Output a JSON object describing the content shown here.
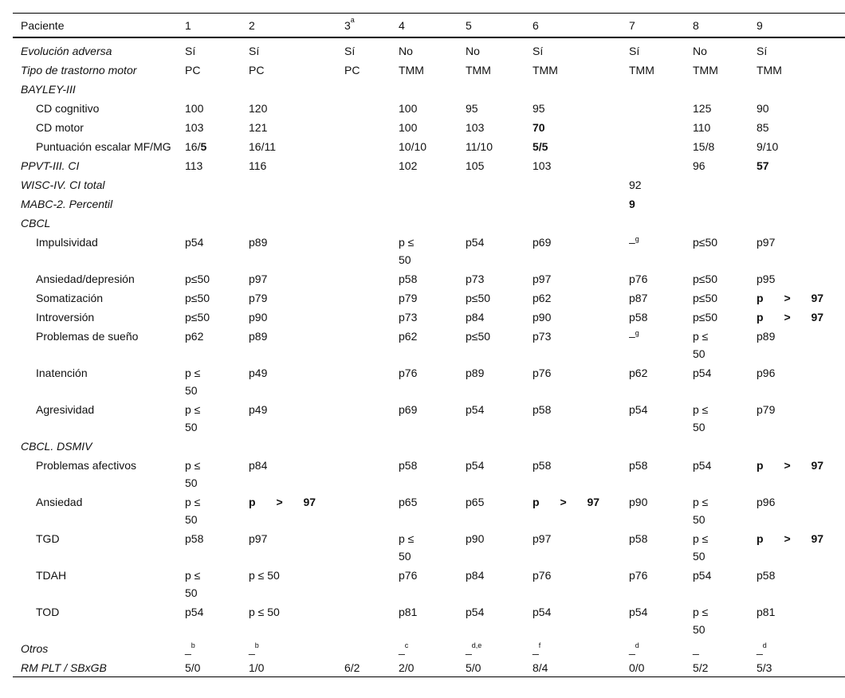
{
  "header": [
    "Paciente",
    "1",
    "2",
    {
      "text": "3",
      "sup": "a"
    },
    "4",
    "5",
    "6",
    "7",
    "8",
    "9"
  ],
  "rows": [
    {
      "label": "Evolución adversa",
      "italic": true,
      "cells": [
        "Sí",
        "Sí",
        "Sí",
        "No",
        "No",
        "Sí",
        "Sí",
        "No",
        "Sí"
      ]
    },
    {
      "label": "Tipo de trastorno motor",
      "italic": true,
      "cells": [
        "PC",
        "PC",
        "PC",
        "TMM",
        "TMM",
        "TMM",
        "TMM",
        "TMM",
        "TMM"
      ]
    },
    {
      "label": "BAYLEY-III",
      "italic": true,
      "cells": [
        "",
        "",
        "",
        "",
        "",
        "",
        "",
        "",
        ""
      ]
    },
    {
      "label": "CD cognitivo",
      "indent": true,
      "cells": [
        "100",
        "120",
        "",
        "100",
        "95",
        "95",
        "",
        "125",
        "90"
      ]
    },
    {
      "label": "CD motor",
      "indent": true,
      "cells": [
        "103",
        "121",
        "",
        "100",
        "103",
        {
          "text": "70",
          "bold": true
        },
        "",
        "110",
        "85"
      ]
    },
    {
      "label": "Puntuación escalar MF/MG",
      "indent": true,
      "cells": [
        {
          "text": "16/",
          "boldpart": "5"
        },
        "16/11",
        "",
        "10/10",
        "11/10",
        {
          "text": "5/5",
          "bold": true
        },
        "",
        "15/8",
        "9/10"
      ]
    },
    {
      "label": "PPVT-III. CI",
      "italic": true,
      "cells": [
        "113",
        "116",
        "",
        "102",
        "105",
        "103",
        "",
        "96",
        {
          "text": "57",
          "bold": true
        }
      ]
    },
    {
      "label": "WISC-IV. CI total",
      "italic": true,
      "cells": [
        "",
        "",
        "",
        "",
        "",
        "",
        "92",
        "",
        ""
      ]
    },
    {
      "label": "MABC-2. Percentil",
      "italic": true,
      "cells": [
        "",
        "",
        "",
        "",
        "",
        "",
        {
          "text": "9",
          "bold": true
        },
        "",
        ""
      ]
    },
    {
      "label": "CBCL",
      "italic": true,
      "cells": [
        "",
        "",
        "",
        "",
        "",
        "",
        "",
        "",
        ""
      ]
    },
    {
      "label": "Impulsividad",
      "indent": true,
      "cells": [
        "p54",
        "p89",
        "",
        {
          "text": "p ≤ 50",
          "narrow": true
        },
        "p54",
        "p69",
        {
          "text": "–",
          "sup": "g"
        },
        "p≤50",
        "p97"
      ]
    },
    {
      "label": "Ansiedad/depresión",
      "indent": true,
      "cells": [
        "p≤50",
        "p97",
        "",
        "p58",
        "p73",
        "p97",
        "p76",
        "p≤50",
        "p95"
      ]
    },
    {
      "label": "Somatización",
      "indent": true,
      "cells": [
        "p≤50",
        "p79",
        "",
        "p79",
        "p≤50",
        "p62",
        "p87",
        "p≤50",
        {
          "text": "p > 97",
          "bold": true,
          "wide": true
        }
      ]
    },
    {
      "label": "Introversión",
      "indent": true,
      "cells": [
        "p≤50",
        "p90",
        "",
        "p73",
        "p84",
        "p90",
        "p58",
        "p≤50",
        {
          "text": "p > 97",
          "bold": true,
          "wide": true
        }
      ]
    },
    {
      "label": "Problemas de sueño",
      "indent": true,
      "cells": [
        "p62",
        "p89",
        "",
        "p62",
        "p≤50",
        "p73",
        {
          "text": "–",
          "sup": "g"
        },
        {
          "text": "p ≤ 50",
          "narrow": true
        },
        "p89"
      ]
    },
    {
      "label": "Inatención",
      "indent": true,
      "cells": [
        {
          "text": "p ≤ 50",
          "narrow": true
        },
        "p49",
        "",
        "p76",
        "p89",
        "p76",
        "p62",
        "p54",
        "p96"
      ]
    },
    {
      "label": "Agresividad",
      "indent": true,
      "cells": [
        {
          "text": "p ≤ 50",
          "narrow": true
        },
        "p49",
        "",
        "p69",
        "p54",
        "p58",
        "p54",
        {
          "text": "p ≤ 50",
          "narrow": true
        },
        "p79"
      ]
    },
    {
      "label": "CBCL. DSMIV",
      "italic": true,
      "cells": [
        "",
        "",
        "",
        "",
        "",
        "",
        "",
        "",
        ""
      ]
    },
    {
      "label": "Problemas afectivos",
      "indent": true,
      "cells": [
        {
          "text": "p ≤ 50",
          "narrow": true
        },
        "p84",
        "",
        "p58",
        "p54",
        "p58",
        "p58",
        "p54",
        {
          "text": "p > 97",
          "bold": true,
          "wide": true
        }
      ]
    },
    {
      "label": "Ansiedad",
      "indent": true,
      "cells": [
        {
          "text": "p ≤ 50",
          "narrow": true
        },
        {
          "text": "p > 97",
          "bold": true,
          "wide": true
        },
        "",
        "p65",
        "p65",
        {
          "text": "p > 97",
          "bold": true,
          "wide": true
        },
        "p90",
        {
          "text": "p ≤ 50",
          "narrow": true
        },
        "p96"
      ]
    },
    {
      "label": "TGD",
      "indent": true,
      "cells": [
        "p58",
        "p97",
        "",
        {
          "text": "p ≤ 50",
          "narrow": true
        },
        "p90",
        "p97",
        "p58",
        {
          "text": "p ≤ 50",
          "narrow": true
        },
        {
          "text": "p > 97",
          "bold": true,
          "wide": true
        }
      ]
    },
    {
      "label": "TDAH",
      "indent": true,
      "cells": [
        {
          "text": "p ≤ 50",
          "narrow": true
        },
        "p ≤ 50",
        "",
        "p76",
        "p84",
        "p76",
        "p76",
        "p54",
        "p58"
      ]
    },
    {
      "label": "TOD",
      "indent": true,
      "cells": [
        "p54",
        "p ≤ 50",
        "",
        "p81",
        "p54",
        "p54",
        "p54",
        {
          "text": "p ≤ 50",
          "narrow": true
        },
        "p81"
      ]
    },
    {
      "label": "Otros",
      "italic": true,
      "cells": [
        {
          "text": "_",
          "sup": "b"
        },
        {
          "text": "_",
          "sup": "b"
        },
        "",
        {
          "text": "_",
          "sup": "c"
        },
        {
          "text": "_",
          "sup": "d,e"
        },
        {
          "text": "_",
          "sup": "f"
        },
        {
          "text": "_",
          "sup": "d"
        },
        "_",
        {
          "text": "_",
          "sup": "d"
        }
      ]
    },
    {
      "label": "RM PLT / SBxGB",
      "italic": true,
      "cells": [
        "5/0",
        "1/0",
        "6/2",
        "2/0",
        "5/0",
        "8/4",
        "0/0",
        "5/2",
        "5/3"
      ]
    }
  ]
}
